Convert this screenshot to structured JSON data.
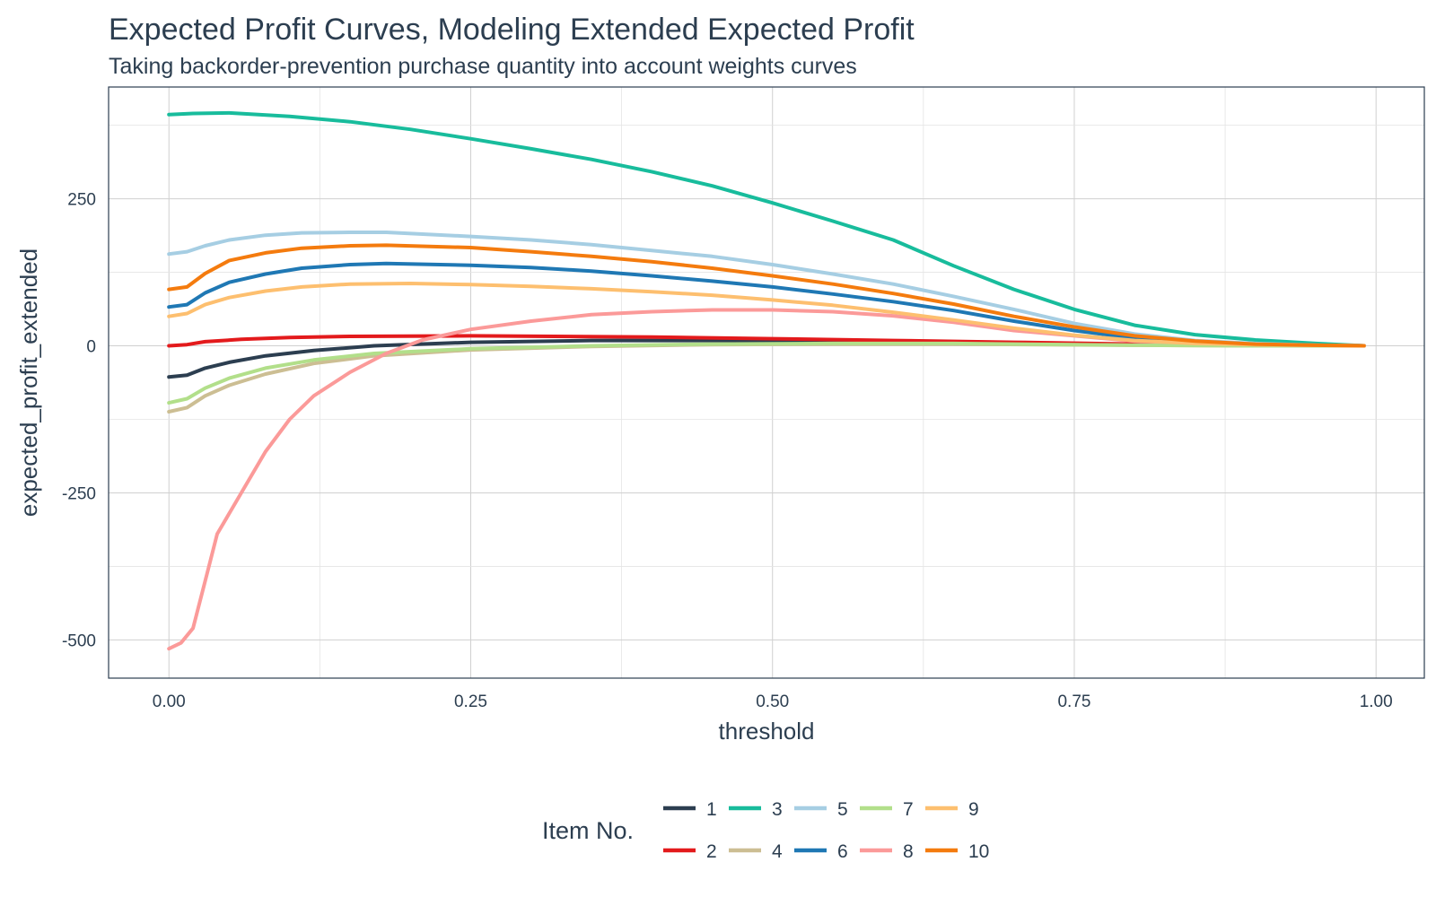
{
  "chart_data": {
    "type": "line",
    "title": "Expected Profit Curves, Modeling Extended Expected Profit",
    "subtitle": "Taking backorder-prevention purchase quantity into account weights curves",
    "xlabel": "threshold",
    "ylabel": "expected_profit_extended",
    "xlim": [
      -0.05,
      1.04
    ],
    "ylim": [
      -565,
      440
    ],
    "x_ticks": [
      0.0,
      0.25,
      0.5,
      0.75,
      1.0
    ],
    "x_tick_labels": [
      "0.00",
      "0.25",
      "0.50",
      "0.75",
      "1.00"
    ],
    "y_ticks": [
      -500,
      -250,
      0,
      250
    ],
    "y_tick_labels": [
      "-500",
      "-250",
      "0",
      "250"
    ],
    "grid": true,
    "legend": {
      "title": "Item No.",
      "position": "bottom"
    },
    "series": [
      {
        "name": "1",
        "color": "#2c3e50",
        "x": [
          0.0,
          0.015,
          0.03,
          0.05,
          0.08,
          0.12,
          0.17,
          0.25,
          0.35,
          0.5,
          0.65,
          0.8,
          0.9,
          0.99
        ],
        "y": [
          -53,
          -50,
          -38,
          -28,
          -17,
          -8,
          0,
          6,
          9,
          9,
          6,
          2,
          1,
          0
        ]
      },
      {
        "name": "2",
        "color": "#e31a1c",
        "x": [
          0.0,
          0.015,
          0.03,
          0.06,
          0.1,
          0.15,
          0.25,
          0.4,
          0.5,
          0.6,
          0.7,
          0.8,
          0.9,
          0.99
        ],
        "y": [
          0,
          2,
          7,
          11,
          14,
          16,
          17,
          15,
          12,
          9,
          6,
          3,
          1,
          0
        ]
      },
      {
        "name": "3",
        "color": "#18bc9c",
        "x": [
          0.0,
          0.02,
          0.05,
          0.1,
          0.15,
          0.2,
          0.25,
          0.3,
          0.35,
          0.4,
          0.45,
          0.5,
          0.55,
          0.6,
          0.65,
          0.7,
          0.75,
          0.8,
          0.85,
          0.9,
          0.95,
          0.99
        ],
        "y": [
          393,
          395,
          396,
          390,
          381,
          368,
          352,
          335,
          317,
          296,
          272,
          243,
          212,
          180,
          136,
          96,
          62,
          35,
          19,
          10,
          4,
          0
        ]
      },
      {
        "name": "4",
        "color": "#ccbe93",
        "x": [
          0.0,
          0.015,
          0.03,
          0.05,
          0.08,
          0.12,
          0.17,
          0.25,
          0.35,
          0.45,
          0.55,
          0.65,
          0.8,
          0.9,
          0.99
        ],
        "y": [
          -112,
          -105,
          -85,
          -67,
          -48,
          -30,
          -17,
          -7,
          -1,
          2,
          3,
          3,
          1,
          0,
          0
        ]
      },
      {
        "name": "5",
        "color": "#a6cee3",
        "x": [
          0.0,
          0.015,
          0.03,
          0.05,
          0.08,
          0.11,
          0.15,
          0.18,
          0.25,
          0.3,
          0.35,
          0.4,
          0.45,
          0.5,
          0.55,
          0.6,
          0.65,
          0.7,
          0.75,
          0.8,
          0.85,
          0.9,
          0.95,
          0.99
        ],
        "y": [
          156,
          160,
          170,
          180,
          188,
          192,
          193,
          193,
          186,
          180,
          172,
          162,
          152,
          138,
          122,
          105,
          84,
          62,
          38,
          20,
          9,
          4,
          1,
          0
        ]
      },
      {
        "name": "6",
        "color": "#1f78b4",
        "x": [
          0.0,
          0.015,
          0.03,
          0.05,
          0.08,
          0.11,
          0.15,
          0.18,
          0.25,
          0.3,
          0.35,
          0.4,
          0.45,
          0.5,
          0.55,
          0.6,
          0.65,
          0.7,
          0.75,
          0.8,
          0.85,
          0.9,
          0.95,
          0.99
        ],
        "y": [
          66,
          70,
          90,
          108,
          122,
          132,
          138,
          140,
          137,
          133,
          127,
          119,
          110,
          100,
          88,
          75,
          60,
          42,
          26,
          13,
          6,
          2,
          1,
          0
        ]
      },
      {
        "name": "7",
        "color": "#b2df8a",
        "x": [
          0.0,
          0.015,
          0.03,
          0.05,
          0.08,
          0.12,
          0.17,
          0.25,
          0.35,
          0.45,
          0.55,
          0.65,
          0.8,
          0.9,
          0.99
        ],
        "y": [
          -97,
          -90,
          -72,
          -55,
          -38,
          -24,
          -13,
          -5,
          0,
          3,
          4,
          4,
          1,
          0,
          0
        ]
      },
      {
        "name": "8",
        "color": "#fb9a99",
        "x": [
          0.0,
          0.01,
          0.02,
          0.03,
          0.04,
          0.06,
          0.08,
          0.1,
          0.12,
          0.15,
          0.18,
          0.21,
          0.25,
          0.3,
          0.35,
          0.4,
          0.45,
          0.5,
          0.55,
          0.6,
          0.65,
          0.7,
          0.8,
          0.9,
          0.99
        ],
        "y": [
          -515,
          -505,
          -480,
          -400,
          -320,
          -250,
          -180,
          -125,
          -85,
          -45,
          -13,
          10,
          28,
          42,
          53,
          58,
          61,
          61,
          58,
          51,
          40,
          26,
          8,
          2,
          0
        ]
      },
      {
        "name": "9",
        "color": "#fdbf6f",
        "x": [
          0.0,
          0.015,
          0.03,
          0.05,
          0.08,
          0.11,
          0.15,
          0.2,
          0.25,
          0.3,
          0.35,
          0.4,
          0.45,
          0.5,
          0.55,
          0.6,
          0.65,
          0.7,
          0.75,
          0.8,
          0.85,
          0.9,
          0.95,
          0.99
        ],
        "y": [
          50,
          55,
          70,
          82,
          93,
          100,
          105,
          106,
          104,
          101,
          97,
          92,
          86,
          78,
          69,
          57,
          44,
          30,
          18,
          9,
          4,
          2,
          1,
          0
        ]
      },
      {
        "name": "10",
        "color": "#f47b0e",
        "x": [
          0.0,
          0.015,
          0.03,
          0.05,
          0.08,
          0.11,
          0.15,
          0.18,
          0.25,
          0.3,
          0.35,
          0.4,
          0.45,
          0.5,
          0.55,
          0.6,
          0.65,
          0.7,
          0.75,
          0.8,
          0.85,
          0.9,
          0.95,
          0.99
        ],
        "y": [
          96,
          100,
          123,
          145,
          158,
          166,
          170,
          171,
          167,
          160,
          152,
          143,
          132,
          119,
          105,
          89,
          71,
          50,
          32,
          17,
          8,
          3,
          1,
          0
        ]
      }
    ]
  }
}
